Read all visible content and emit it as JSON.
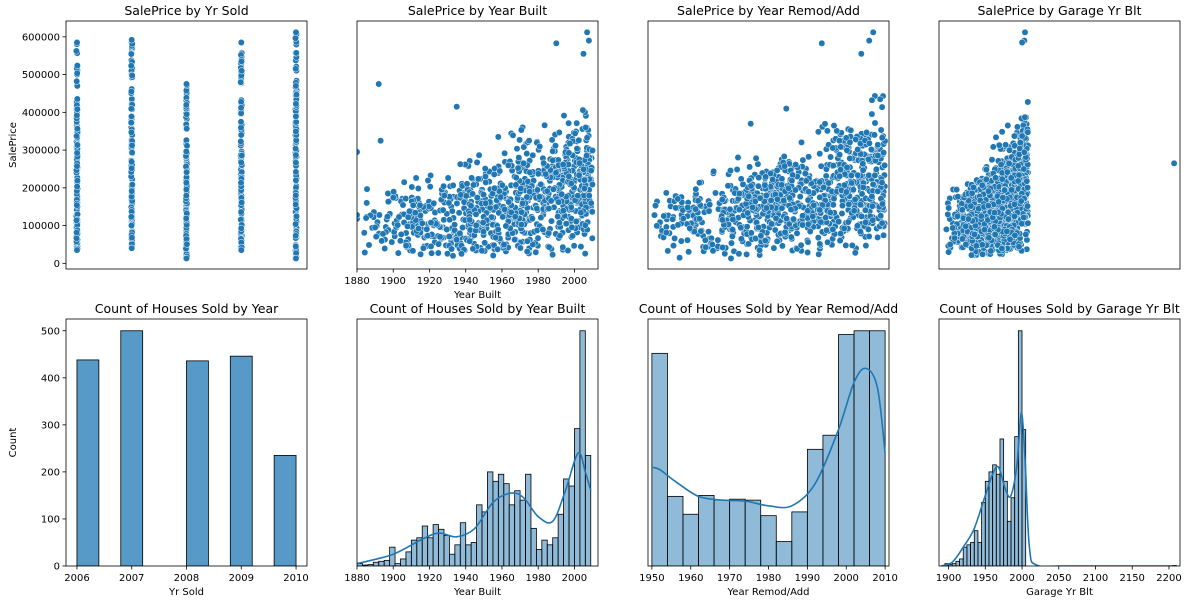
{
  "chart_data": [
    {
      "type": "scatter",
      "title": "SalePrice by Yr Sold",
      "xlabel": "",
      "ylabel": "SalePrice",
      "xlim": [
        2005.8,
        2010.2
      ],
      "ylim": [
        -15000,
        642000
      ],
      "xticks": [],
      "yticks": [
        0,
        100000,
        200000,
        300000,
        400000,
        500000,
        600000
      ],
      "ytick_labels": [
        "0",
        "100000",
        "200000",
        "300000",
        "400000",
        "500000",
        "600000"
      ],
      "grid": false,
      "color": "#1f77b4",
      "x_categories": [
        2006,
        2007,
        2008,
        2009,
        2010
      ],
      "y_range_per_x": [
        [
          35000,
          585000
        ],
        [
          40000,
          592000
        ],
        [
          13000,
          475000
        ],
        [
          35000,
          585000
        ],
        [
          13000,
          612000
        ]
      ]
    },
    {
      "type": "scatter",
      "title": "SalePrice by Year Built",
      "xlabel": "Year Built",
      "ylabel": "",
      "xlim": [
        1880,
        2013
      ],
      "ylim": [
        -15000,
        642000
      ],
      "xticks": [
        1880,
        1900,
        1920,
        1940,
        1960,
        1980,
        2000
      ],
      "xtick_labels": [
        "1880",
        "1900",
        "1920",
        "1940",
        "1960",
        "1980",
        "2000"
      ],
      "yticks": [],
      "grid": false,
      "color": "#1f77b4",
      "points": [
        [
          1880,
          295000
        ],
        [
          1892,
          475000
        ],
        [
          1893,
          325000
        ],
        [
          1935,
          415000
        ],
        [
          1880,
          118000
        ],
        [
          1880,
          128000
        ],
        [
          1885,
          120000
        ],
        [
          1890,
          95000
        ],
        [
          1990,
          583000
        ],
        [
          2007,
          612000
        ],
        [
          2008,
          590000
        ],
        [
          2005,
          555000
        ],
        [
          1958,
          335000
        ],
        [
          1975,
          325000
        ]
      ],
      "cloud": {
        "x_range": [
          1880,
          2010
        ],
        "y_base_start": 100000,
        "y_base_end": 230000,
        "spread_start": 40000,
        "spread_end": 90000
      }
    },
    {
      "type": "scatter",
      "title": "SalePrice by Year Remod/Add",
      "xlabel": "",
      "ylabel": "",
      "xlim": [
        1950,
        2011
      ],
      "ylim": [
        -15000,
        642000
      ],
      "xticks": [],
      "yticks": [],
      "grid": false,
      "color": "#1f77b4",
      "points": [
        [
          1994,
          583000
        ],
        [
          2007,
          612000
        ],
        [
          2006,
          590000
        ],
        [
          2004,
          555000
        ],
        [
          1971,
          13000
        ],
        [
          1958,
          15000
        ],
        [
          1976,
          370000
        ],
        [
          1985,
          410000
        ]
      ],
      "cloud": {
        "x_range": [
          1950,
          2010
        ],
        "y_base_start": 120000,
        "y_base_end": 230000,
        "spread_start": 35000,
        "spread_end": 90000
      }
    },
    {
      "type": "scatter",
      "title": "SalePrice by Garage Yr Blt",
      "xlabel": "",
      "ylabel": "",
      "xlim": [
        1890,
        2215
      ],
      "ylim": [
        -15000,
        642000
      ],
      "xticks": [],
      "yticks": [],
      "grid": false,
      "color": "#1f77b4",
      "points": [
        [
          2207,
          265000
        ],
        [
          2006,
          612000
        ],
        [
          2005,
          590000
        ],
        [
          2002,
          585000
        ],
        [
          1900,
          90000
        ],
        [
          1905,
          50000
        ],
        [
          1915,
          125000
        ]
      ],
      "cloud": {
        "x_range": [
          1900,
          2010
        ],
        "y_base_start": 100000,
        "y_base_end": 230000,
        "spread_start": 40000,
        "spread_end": 90000
      }
    },
    {
      "type": "bar",
      "title": "Count of Houses Sold by Year",
      "xlabel": "Yr Sold",
      "ylabel": "Count",
      "xlim": [
        2005.8,
        2010.2
      ],
      "ylim": [
        0,
        525
      ],
      "xticks": [
        2006,
        2007,
        2008,
        2009,
        2010
      ],
      "xtick_labels": [
        "2006",
        "2007",
        "2008",
        "2009",
        "2010"
      ],
      "yticks": [
        0,
        100,
        200,
        300,
        400,
        500
      ],
      "ytick_labels": [
        "0",
        "100",
        "200",
        "300",
        "400",
        "500"
      ],
      "grid": false,
      "bins": [
        [
          2006,
          2006.4,
          438
        ],
        [
          2006.4,
          2006.8,
          0
        ],
        [
          2006.8,
          2007.2,
          500
        ],
        [
          2007.2,
          2007.6,
          0
        ],
        [
          2007.6,
          2008,
          0
        ],
        [
          2008,
          2008.4,
          436
        ],
        [
          2008.4,
          2008.8,
          0
        ],
        [
          2008.8,
          2009.2,
          446
        ],
        [
          2009.2,
          2009.6,
          0
        ],
        [
          2009.6,
          2010,
          235
        ]
      ],
      "color": "#1f77b4",
      "alpha": 0.75,
      "kde": []
    },
    {
      "type": "bar",
      "title": "Count of Houses Sold by Year Built",
      "xlabel": "Year Built",
      "ylabel": "",
      "xlim": [
        1880,
        2013
      ],
      "ylim": [
        0,
        525
      ],
      "xticks": [
        1880,
        1900,
        1920,
        1940,
        1960,
        1980,
        2000
      ],
      "xtick_labels": [
        "1880",
        "1900",
        "1920",
        "1940",
        "1960",
        "1980",
        "2000"
      ],
      "yticks": [],
      "grid": false,
      "bins": [
        [
          1880,
          1883,
          5
        ],
        [
          1883,
          1886,
          2
        ],
        [
          1886,
          1889,
          3
        ],
        [
          1889,
          1892,
          8
        ],
        [
          1892,
          1895,
          10
        ],
        [
          1895,
          1898,
          12
        ],
        [
          1898,
          1901,
          40
        ],
        [
          1901,
          1904,
          5
        ],
        [
          1904,
          1907,
          15
        ],
        [
          1907,
          1910,
          30
        ],
        [
          1910,
          1913,
          55
        ],
        [
          1913,
          1916,
          60
        ],
        [
          1916,
          1919,
          85
        ],
        [
          1919,
          1922,
          60
        ],
        [
          1922,
          1925,
          88
        ],
        [
          1925,
          1928,
          78
        ],
        [
          1928,
          1931,
          65
        ],
        [
          1931,
          1934,
          25
        ],
        [
          1934,
          1937,
          45
        ],
        [
          1937,
          1940,
          92
        ],
        [
          1940,
          1943,
          45
        ],
        [
          1943,
          1946,
          50
        ],
        [
          1946,
          1949,
          130
        ],
        [
          1949,
          1952,
          115
        ],
        [
          1952,
          1955,
          200
        ],
        [
          1955,
          1958,
          180
        ],
        [
          1958,
          1961,
          195
        ],
        [
          1961,
          1964,
          175
        ],
        [
          1964,
          1967,
          130
        ],
        [
          1967,
          1970,
          160
        ],
        [
          1970,
          1973,
          140
        ],
        [
          1973,
          1976,
          195
        ],
        [
          1976,
          1979,
          80
        ],
        [
          1979,
          1982,
          35
        ],
        [
          1982,
          1985,
          55
        ],
        [
          1985,
          1988,
          45
        ],
        [
          1988,
          1991,
          60
        ],
        [
          1991,
          1994,
          110
        ],
        [
          1994,
          1997,
          185
        ],
        [
          1997,
          2000,
          170
        ],
        [
          2000,
          2003,
          292
        ],
        [
          2003,
          2006,
          500
        ],
        [
          2006,
          2009,
          235
        ]
      ],
      "color": "#1f77b4",
      "alpha": 0.5,
      "kde": [
        [
          1880,
          5
        ],
        [
          1900,
          25
        ],
        [
          1915,
          55
        ],
        [
          1925,
          70
        ],
        [
          1935,
          62
        ],
        [
          1945,
          80
        ],
        [
          1955,
          135
        ],
        [
          1965,
          155
        ],
        [
          1972,
          145
        ],
        [
          1980,
          105
        ],
        [
          1988,
          95
        ],
        [
          1995,
          160
        ],
        [
          2002,
          240
        ],
        [
          2006,
          200
        ],
        [
          2009,
          160
        ]
      ]
    },
    {
      "type": "bar",
      "title": "Count of Houses Sold by Year Remod/Add",
      "xlabel": "Year Remod/Add",
      "ylabel": "",
      "xlim": [
        1949,
        2011
      ],
      "ylim": [
        0,
        525
      ],
      "xticks": [
        1950,
        1960,
        1970,
        1980,
        1990,
        2000,
        2010
      ],
      "xtick_labels": [
        "1950",
        "1960",
        "1970",
        "1980",
        "1990",
        "2000",
        "2010"
      ],
      "yticks": [],
      "grid": false,
      "bins": [
        [
          1950,
          1954,
          452
        ],
        [
          1954,
          1958,
          148
        ],
        [
          1958,
          1962,
          110
        ],
        [
          1962,
          1966,
          150
        ],
        [
          1966,
          1970,
          140
        ],
        [
          1970,
          1974,
          142
        ],
        [
          1974,
          1978,
          140
        ],
        [
          1978,
          1982,
          107
        ],
        [
          1982,
          1986,
          52
        ],
        [
          1986,
          1990,
          115
        ],
        [
          1990,
          1994,
          248
        ],
        [
          1994,
          1998,
          278
        ],
        [
          1998,
          2002,
          492
        ],
        [
          2002,
          2006,
          500
        ],
        [
          2006,
          2010,
          500
        ]
      ],
      "color": "#1f77b4",
      "alpha": 0.5,
      "kde": [
        [
          1950,
          210
        ],
        [
          1952,
          205
        ],
        [
          1956,
          180
        ],
        [
          1962,
          148
        ],
        [
          1968,
          140
        ],
        [
          1974,
          138
        ],
        [
          1980,
          128
        ],
        [
          1986,
          128
        ],
        [
          1992,
          175
        ],
        [
          1998,
          290
        ],
        [
          2002,
          390
        ],
        [
          2005,
          420
        ],
        [
          2008,
          380
        ],
        [
          2010,
          240
        ]
      ]
    },
    {
      "type": "bar",
      "title": "Count of Houses Sold by Garage Yr Blt",
      "xlabel": "Garage Yr Blt",
      "ylabel": "",
      "xlim": [
        1887,
        2215
      ],
      "ylim": [
        0,
        525
      ],
      "xticks": [
        1900,
        1950,
        2000,
        2050,
        2100,
        2150,
        2200
      ],
      "xtick_labels": [
        "1900",
        "1950",
        "2000",
        "2050",
        "2100",
        "2150",
        "2200"
      ],
      "yticks": [],
      "grid": false,
      "bins": [
        [
          1895,
          1900,
          5
        ],
        [
          1900,
          1905,
          3
        ],
        [
          1905,
          1910,
          5
        ],
        [
          1910,
          1915,
          10
        ],
        [
          1915,
          1920,
          15
        ],
        [
          1920,
          1925,
          40
        ],
        [
          1925,
          1930,
          45
        ],
        [
          1930,
          1935,
          50
        ],
        [
          1935,
          1940,
          75
        ],
        [
          1940,
          1945,
          50
        ],
        [
          1945,
          1950,
          135
        ],
        [
          1950,
          1955,
          180
        ],
        [
          1955,
          1960,
          200
        ],
        [
          1960,
          1965,
          215
        ],
        [
          1965,
          1970,
          195
        ],
        [
          1970,
          1975,
          270
        ],
        [
          1975,
          1980,
          180
        ],
        [
          1980,
          1985,
          95
        ],
        [
          1985,
          1990,
          145
        ],
        [
          1990,
          1995,
          275
        ],
        [
          1995,
          2000,
          500
        ],
        [
          2000,
          2005,
          290
        ],
        [
          2205,
          2210,
          1
        ]
      ],
      "color": "#1f77b4",
      "alpha": 0.5,
      "kde": [
        [
          1890,
          0
        ],
        [
          1905,
          8
        ],
        [
          1920,
          40
        ],
        [
          1935,
          80
        ],
        [
          1950,
          150
        ],
        [
          1960,
          195
        ],
        [
          1968,
          210
        ],
        [
          1978,
          160
        ],
        [
          1985,
          150
        ],
        [
          1993,
          215
        ],
        [
          1999,
          325
        ],
        [
          2004,
          230
        ],
        [
          2010,
          40
        ],
        [
          2020,
          2
        ],
        [
          2060,
          0
        ],
        [
          2205,
          0
        ]
      ]
    }
  ]
}
